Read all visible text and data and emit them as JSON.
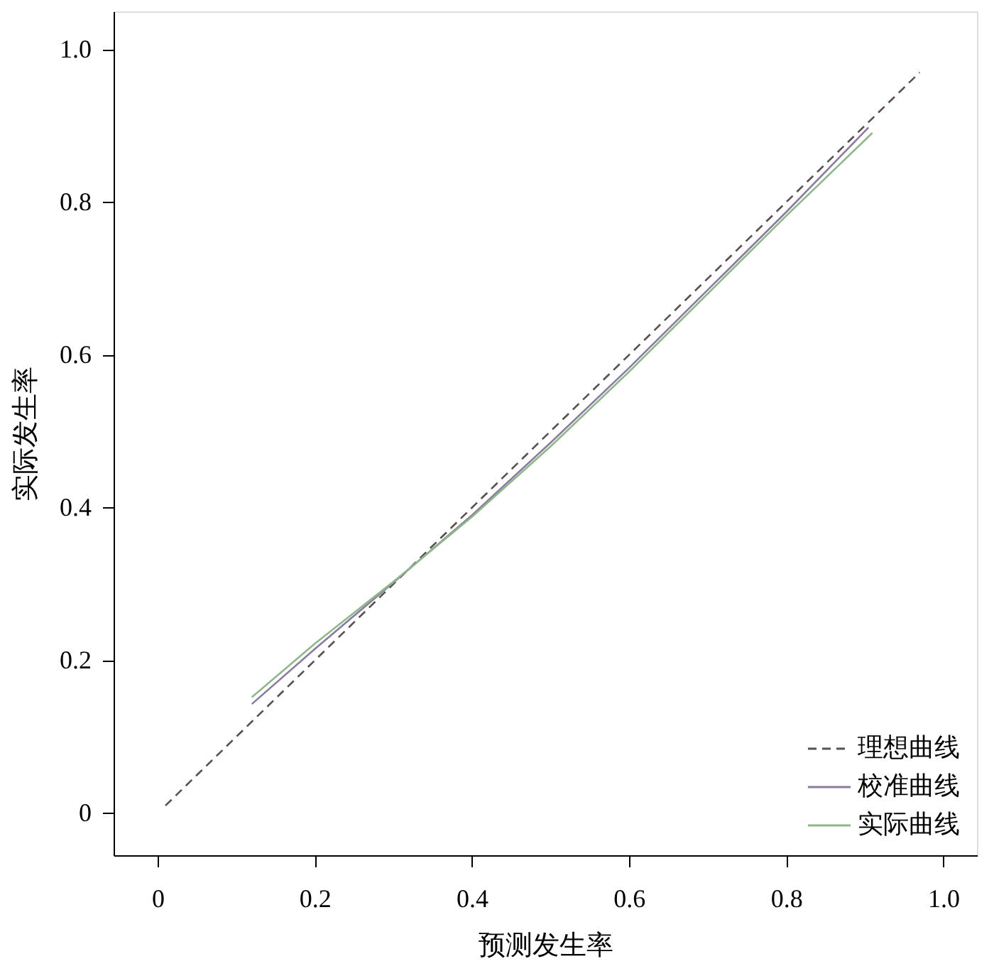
{
  "chart_data": {
    "type": "line",
    "xlabel": "预测发生率",
    "ylabel": "实际发生率",
    "xlim": [
      -0.056,
      1.043
    ],
    "ylim": [
      -0.055,
      1.05
    ],
    "xticks": [
      0,
      0.2,
      0.4,
      0.6,
      0.8,
      {
        "value": 1,
        "label": "1.0"
      }
    ],
    "yticks": [
      0,
      0.2,
      0.4,
      0.6,
      0.8,
      {
        "value": 1,
        "label": "1.0"
      }
    ],
    "grid": false,
    "legend": "bottom right",
    "marker": "none",
    "series": [
      {
        "name": "理想曲线",
        "color": "#5a5050",
        "line_style": "dashed",
        "x": [
          0.01,
          0.97
        ],
        "values": [
          0.01,
          0.97
        ]
      },
      {
        "name": "校准曲线",
        "color": "#8a7ca0",
        "line_style": "solid",
        "x": [
          0.12,
          0.2,
          0.3,
          0.4,
          0.5,
          0.6,
          0.7,
          0.8,
          0.905
        ],
        "values": [
          0.143,
          0.215,
          0.302,
          0.39,
          0.485,
          0.583,
          0.685,
          0.787,
          0.898
        ]
      },
      {
        "name": "实际曲线",
        "color": "#8fb88a",
        "line_style": "solid",
        "x": [
          0.12,
          0.2,
          0.3,
          0.4,
          0.5,
          0.6,
          0.7,
          0.8,
          0.91
        ],
        "values": [
          0.152,
          0.222,
          0.303,
          0.388,
          0.48,
          0.578,
          0.68,
          0.782,
          0.891
        ]
      }
    ]
  }
}
